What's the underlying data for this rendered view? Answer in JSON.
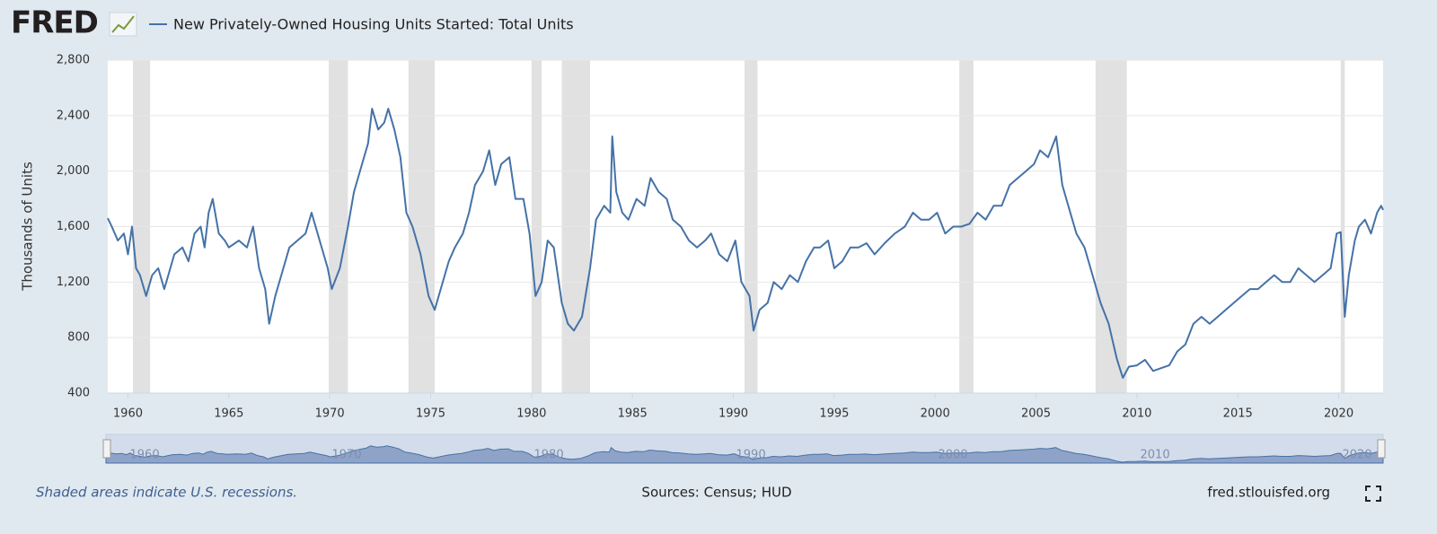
{
  "logo": "FRED",
  "chart_data": {
    "type": "line",
    "series": [
      {
        "name": "New Privately-Owned Housing Units Started: Total Units",
        "color": "#4572a7",
        "x": [
          1959.0,
          1959.2,
          1959.5,
          1959.8,
          1960.0,
          1960.2,
          1960.4,
          1960.6,
          1960.9,
          1961.2,
          1961.5,
          1961.8,
          1962.0,
          1962.3,
          1962.7,
          1963.0,
          1963.3,
          1963.6,
          1963.8,
          1964.0,
          1964.2,
          1964.5,
          1964.8,
          1965.0,
          1965.5,
          1965.9,
          1966.2,
          1966.5,
          1966.8,
          1967.0,
          1967.3,
          1967.7,
          1968.0,
          1968.4,
          1968.8,
          1969.1,
          1969.5,
          1969.9,
          1970.1,
          1970.5,
          1970.9,
          1971.2,
          1971.6,
          1971.9,
          1972.1,
          1972.4,
          1972.7,
          1972.9,
          1973.2,
          1973.5,
          1973.8,
          1974.1,
          1974.5,
          1974.9,
          1975.2,
          1975.5,
          1975.9,
          1976.2,
          1976.6,
          1976.9,
          1977.2,
          1977.6,
          1977.9,
          1978.2,
          1978.5,
          1978.9,
          1979.2,
          1979.6,
          1979.9,
          1980.2,
          1980.5,
          1980.8,
          1981.1,
          1981.5,
          1981.8,
          1982.1,
          1982.5,
          1982.9,
          1983.2,
          1983.6,
          1983.9,
          1984.0,
          1984.2,
          1984.5,
          1984.8,
          1985.2,
          1985.6,
          1985.9,
          1986.3,
          1986.7,
          1987.0,
          1987.4,
          1987.8,
          1988.2,
          1988.6,
          1988.9,
          1989.3,
          1989.7,
          1990.1,
          1990.4,
          1990.8,
          1991.0,
          1991.3,
          1991.7,
          1992.0,
          1992.4,
          1992.8,
          1993.2,
          1993.6,
          1994.0,
          1994.3,
          1994.7,
          1995.0,
          1995.4,
          1995.8,
          1996.2,
          1996.6,
          1997.0,
          1997.5,
          1998.0,
          1998.5,
          1998.9,
          1999.3,
          1999.7,
          2000.1,
          2000.5,
          2000.9,
          2001.3,
          2001.7,
          2002.1,
          2002.5,
          2002.9,
          2003.3,
          2003.7,
          2004.1,
          2004.5,
          2004.9,
          2005.2,
          2005.6,
          2006.0,
          2006.3,
          2006.7,
          2007.0,
          2007.4,
          2007.8,
          2008.2,
          2008.6,
          2009.0,
          2009.3,
          2009.6,
          2010.0,
          2010.4,
          2010.8,
          2011.2,
          2011.6,
          2012.0,
          2012.4,
          2012.8,
          2013.2,
          2013.6,
          2014.0,
          2014.4,
          2014.8,
          2015.2,
          2015.6,
          2016.0,
          2016.4,
          2016.8,
          2017.2,
          2017.6,
          2018.0,
          2018.4,
          2018.8,
          2019.2,
          2019.6,
          2019.9,
          2020.1,
          2020.3,
          2020.5,
          2020.8,
          2021.0,
          2021.3,
          2021.6,
          2021.9,
          2022.1,
          2022.2
        ],
        "values": [
          1660,
          1600,
          1500,
          1550,
          1400,
          1600,
          1300,
          1250,
          1100,
          1250,
          1300,
          1150,
          1250,
          1400,
          1450,
          1350,
          1550,
          1600,
          1450,
          1700,
          1800,
          1550,
          1500,
          1450,
          1500,
          1450,
          1600,
          1300,
          1150,
          900,
          1100,
          1300,
          1450,
          1500,
          1550,
          1700,
          1500,
          1300,
          1150,
          1300,
          1600,
          1850,
          2050,
          2200,
          2450,
          2300,
          2350,
          2450,
          2300,
          2100,
          1700,
          1600,
          1400,
          1100,
          1000,
          1150,
          1350,
          1450,
          1550,
          1700,
          1900,
          2000,
          2150,
          1900,
          2050,
          2100,
          1800,
          1800,
          1550,
          1100,
          1200,
          1500,
          1450,
          1050,
          900,
          850,
          950,
          1300,
          1650,
          1750,
          1700,
          2250,
          1850,
          1700,
          1650,
          1800,
          1750,
          1950,
          1850,
          1800,
          1650,
          1600,
          1500,
          1450,
          1500,
          1550,
          1400,
          1350,
          1500,
          1200,
          1100,
          850,
          1000,
          1050,
          1200,
          1150,
          1250,
          1200,
          1350,
          1450,
          1450,
          1500,
          1300,
          1350,
          1450,
          1450,
          1480,
          1400,
          1480,
          1550,
          1600,
          1700,
          1650,
          1650,
          1700,
          1550,
          1600,
          1600,
          1620,
          1700,
          1650,
          1750,
          1750,
          1900,
          1950,
          2000,
          2050,
          2150,
          2100,
          2250,
          1900,
          1700,
          1550,
          1450,
          1250,
          1050,
          900,
          650,
          510,
          590,
          600,
          640,
          560,
          580,
          600,
          700,
          750,
          900,
          950,
          900,
          950,
          1000,
          1050,
          1100,
          1150,
          1150,
          1200,
          1250,
          1200,
          1200,
          1300,
          1250,
          1200,
          1250,
          1300,
          1550,
          1560,
          950,
          1250,
          1500,
          1600,
          1650,
          1550,
          1700,
          1750,
          1720
        ]
      }
    ],
    "y_label": "Thousands of Units",
    "xlim": [
      1959.0,
      2022.2
    ],
    "ylim": [
      400,
      2800
    ],
    "xticks": [
      1960,
      1965,
      1970,
      1975,
      1980,
      1985,
      1990,
      1995,
      2000,
      2005,
      2010,
      2015,
      2020
    ],
    "yticks": [
      {
        "value": 400,
        "label": "400"
      },
      {
        "value": 800,
        "label": "800"
      },
      {
        "value": 1200,
        "label": "1,200"
      },
      {
        "value": 1600,
        "label": "1,600"
      },
      {
        "value": 2000,
        "label": "2,000"
      },
      {
        "value": 2400,
        "label": "2,400"
      },
      {
        "value": 2800,
        "label": "2,800"
      }
    ],
    "grid": true,
    "recessions": [
      [
        1960.25,
        1961.1
      ],
      [
        1969.95,
        1970.9
      ],
      [
        1973.9,
        1975.2
      ],
      [
        1980.0,
        1980.5
      ],
      [
        1981.5,
        1982.9
      ],
      [
        1990.55,
        1991.2
      ],
      [
        2001.2,
        2001.9
      ],
      [
        2007.95,
        2009.5
      ],
      [
        2020.1,
        2020.3
      ]
    ],
    "recession_color": "#e1e1e1",
    "navigator_xticks": [
      1960,
      1970,
      1980,
      1990,
      2000,
      2010,
      2020
    ],
    "footer_note": "Shaded areas indicate U.S. recessions.",
    "sources": "Sources: Census; HUD",
    "site": "fred.stlouisfed.org"
  }
}
